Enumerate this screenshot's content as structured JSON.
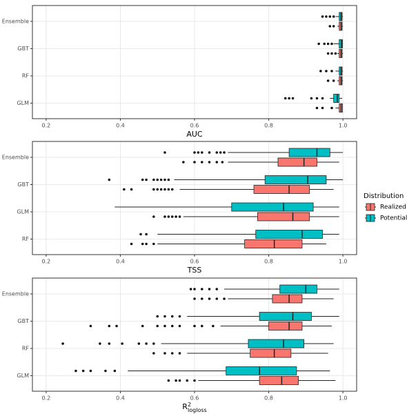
{
  "chart_data": [
    {
      "type": "box",
      "x_label": "AUC",
      "grid": true,
      "xlim": [
        0.163,
        1.037
      ],
      "xticks": [
        0.2,
        0.4,
        0.6,
        0.8,
        {
          "value": 1,
          "label": "1.0"
        }
      ],
      "categories": [
        "Ensemble",
        "GBT",
        "RF",
        "GLM"
      ],
      "series": [
        {
          "name": "Realized",
          "color": "#F8766D",
          "values": [
            {
              "min": 0.985,
              "q1": 0.99,
              "median": 0.995,
              "q3": 0.998,
              "max": 1.0,
              "outliers": [
                0.965,
                0.975
              ]
            },
            {
              "min": 0.985,
              "q1": 0.99,
              "median": 0.995,
              "q3": 0.998,
              "max": 1.0,
              "outliers": [
                0.96,
                0.97,
                0.98
              ]
            },
            {
              "min": 0.985,
              "q1": 0.99,
              "median": 0.995,
              "q3": 0.998,
              "max": 1.0,
              "outliers": [
                0.96,
                0.975
              ]
            },
            {
              "min": 0.98,
              "q1": 0.99,
              "median": 0.995,
              "q3": 0.999,
              "max": 1.0,
              "outliers": [
                0.93,
                0.945,
                0.97
              ]
            }
          ]
        },
        {
          "name": "Potential",
          "color": "#00BFC4",
          "values": [
            {
              "min": 0.98,
              "q1": 0.99,
              "median": 0.995,
              "q3": 0.998,
              "max": 1.0,
              "outliers": [
                0.945,
                0.955,
                0.965,
                0.975
              ]
            },
            {
              "min": 0.975,
              "q1": 0.99,
              "median": 0.996,
              "q3": 0.999,
              "max": 1.0,
              "outliers": [
                0.935,
                0.95,
                0.96,
                0.97
              ]
            },
            {
              "min": 0.98,
              "q1": 0.99,
              "median": 0.995,
              "q3": 0.998,
              "max": 1.0,
              "outliers": [
                0.94,
                0.955,
                0.97
              ]
            },
            {
              "min": 0.965,
              "q1": 0.975,
              "median": 0.985,
              "q3": 0.99,
              "max": 0.998,
              "outliers": [
                0.845,
                0.855,
                0.865,
                0.915,
                0.93,
                0.945
              ]
            }
          ]
        }
      ]
    },
    {
      "type": "box",
      "x_label": "TSS",
      "grid": true,
      "legend_title": "Distribution",
      "legend": "right",
      "xlim": [
        0.163,
        1.037
      ],
      "xticks": [
        0.2,
        0.4,
        0.6,
        0.8,
        {
          "value": 1,
          "label": "1.0"
        }
      ],
      "categories": [
        "Ensemble",
        "GBT",
        "GLM",
        "RF"
      ],
      "series": [
        {
          "name": "Realized",
          "color": "#F8766D",
          "values": [
            {
              "min": 0.69,
              "q1": 0.825,
              "median": 0.895,
              "q3": 0.93,
              "max": 0.99,
              "outliers": [
                0.57,
                0.6,
                0.62,
                0.64,
                0.66,
                0.675
              ]
            },
            {
              "min": 0.56,
              "q1": 0.76,
              "median": 0.855,
              "q3": 0.91,
              "max": 0.975,
              "outliers": [
                0.41,
                0.43,
                0.49,
                0.5,
                0.51,
                0.52,
                0.53,
                0.54
              ]
            },
            {
              "min": 0.57,
              "q1": 0.77,
              "median": 0.865,
              "q3": 0.91,
              "max": 0.99,
              "outliers": [
                0.49,
                0.52,
                0.53,
                0.54,
                0.55,
                0.56
              ]
            },
            {
              "min": 0.5,
              "q1": 0.735,
              "median": 0.815,
              "q3": 0.89,
              "max": 0.955,
              "outliers": [
                0.43,
                0.46,
                0.47,
                0.49
              ]
            }
          ]
        },
        {
          "name": "Potential",
          "color": "#00BFC4",
          "values": [
            {
              "min": 0.69,
              "q1": 0.855,
              "median": 0.93,
              "q3": 0.965,
              "max": 1.0,
              "outliers": [
                0.52,
                0.6,
                0.61,
                0.62,
                0.64,
                0.66,
                0.67,
                0.68
              ]
            },
            {
              "min": 0.545,
              "q1": 0.79,
              "median": 0.905,
              "q3": 0.955,
              "max": 1.0,
              "outliers": [
                0.37,
                0.46,
                0.47,
                0.49,
                0.5,
                0.51,
                0.52,
                0.53
              ]
            },
            {
              "min": 0.385,
              "q1": 0.7,
              "median": 0.84,
              "q3": 0.92,
              "max": 0.99,
              "outliers": []
            },
            {
              "min": 0.5,
              "q1": 0.765,
              "median": 0.89,
              "q3": 0.945,
              "max": 0.99,
              "outliers": [
                0.455,
                0.47
              ]
            }
          ]
        }
      ]
    },
    {
      "type": "box",
      "x_label": "R",
      "x_label_sup": "2",
      "x_label_sub": "logloss",
      "grid": true,
      "xlim": [
        0.163,
        1.037
      ],
      "xticks": [
        0.2,
        0.4,
        0.6,
        0.8,
        {
          "value": 1,
          "label": "1.0"
        }
      ],
      "categories": [
        "Ensemble",
        "GBT",
        "RF",
        "GLM"
      ],
      "series": [
        {
          "name": "Realized",
          "color": "#F8766D",
          "values": [
            {
              "min": 0.69,
              "q1": 0.81,
              "median": 0.855,
              "q3": 0.89,
              "max": 0.975,
              "outliers": [
                0.6,
                0.62,
                0.64,
                0.66,
                0.68
              ]
            },
            {
              "min": 0.67,
              "q1": 0.8,
              "median": 0.855,
              "q3": 0.89,
              "max": 0.97,
              "outliers": [
                0.32,
                0.37,
                0.39,
                0.46,
                0.5,
                0.52,
                0.54,
                0.56,
                0.6,
                0.62,
                0.65
              ]
            },
            {
              "min": 0.58,
              "q1": 0.75,
              "median": 0.815,
              "q3": 0.86,
              "max": 0.96,
              "outliers": [
                0.49,
                0.52,
                0.54,
                0.56
              ]
            },
            {
              "min": 0.61,
              "q1": 0.775,
              "median": 0.835,
              "q3": 0.88,
              "max": 0.98,
              "outliers": [
                0.53,
                0.55,
                0.56,
                0.58,
                0.6
              ]
            }
          ]
        },
        {
          "name": "Potential",
          "color": "#00BFC4",
          "values": [
            {
              "min": 0.68,
              "q1": 0.83,
              "median": 0.9,
              "q3": 0.93,
              "max": 0.99,
              "outliers": [
                0.59,
                0.6,
                0.62,
                0.64,
                0.66
              ]
            },
            {
              "min": 0.58,
              "q1": 0.775,
              "median": 0.865,
              "q3": 0.915,
              "max": 0.99,
              "outliers": [
                0.5,
                0.52,
                0.54,
                0.56
              ]
            },
            {
              "min": 0.51,
              "q1": 0.745,
              "median": 0.84,
              "q3": 0.895,
              "max": 0.975,
              "outliers": [
                0.245,
                0.345,
                0.37,
                0.405,
                0.45,
                0.47,
                0.49
              ]
            },
            {
              "min": 0.42,
              "q1": 0.685,
              "median": 0.775,
              "q3": 0.875,
              "max": 0.965,
              "outliers": [
                0.28,
                0.3,
                0.32,
                0.36,
                0.385
              ]
            }
          ]
        }
      ]
    }
  ]
}
